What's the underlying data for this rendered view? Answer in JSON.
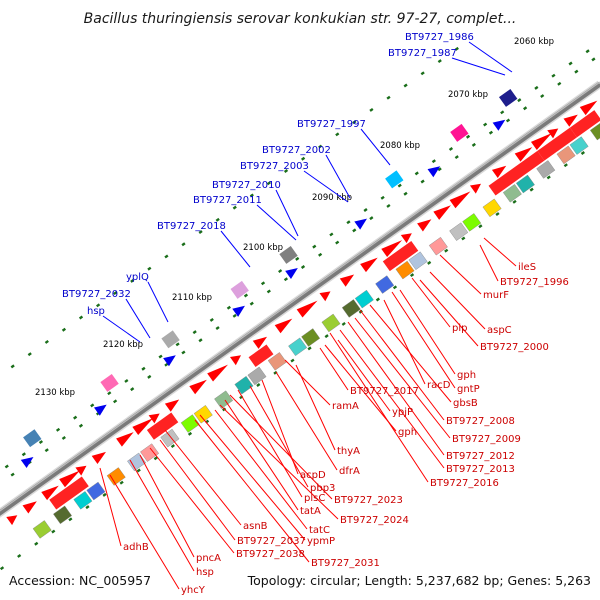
{
  "title": "Bacillus thuringiensis serovar konkukian str. 97-27, complet...",
  "accession": "Accession: NC_005957",
  "topology": "Topology: circular; Length: 5,237,682 bp; Genes: 5,263",
  "colors": {
    "background": "#ffffff",
    "backbone": "#7a7a7a",
    "forward_feature": "#ff0000",
    "reverse_feature": "#ff0000",
    "feature_gene": "#ee0000",
    "tick_dot": "#1a6e1a",
    "label_blue": "#0000cc",
    "label_red": "#cc0000",
    "leader_blue": "#0000ff",
    "leader_red": "#ff0000"
  },
  "ticks": [
    "2060 kbp",
    "2070 kbp",
    "2080 kbp",
    "2090 kbp",
    "2100 kbp",
    "2110 kbp",
    "2120 kbp",
    "2130 kbp"
  ],
  "labels_top": [
    "BT9727_1986",
    "BT9727_1987",
    "BT9727_1997",
    "BT9727_2002",
    "BT9727_2003",
    "BT9727_2010",
    "BT9727_2011",
    "BT9727_2018",
    "yplQ",
    "BT9727_2032",
    "hsp"
  ],
  "labels_bottom": [
    "ileS",
    "BT9727_1996",
    "murF",
    "aspC",
    "pip",
    "BT9727_2000",
    "gph",
    "gntP",
    "racD",
    "gbsB",
    "BT9727_2008",
    "BT9727_2009",
    "BT9727_2012",
    "BT9727_2013",
    "BT9727_2016",
    "ypjP",
    "gph",
    "BT9727_2017",
    "ramA",
    "thyA",
    "dfrA",
    "acpD",
    "pbp3",
    "plsC",
    "BT9727_2023",
    "tatA",
    "BT9727_2024",
    "tatC",
    "ypmP",
    "BT9727_2031",
    "asnB",
    "BT9727_2037",
    "BT9727_2038",
    "pncA",
    "hsp",
    "adhB",
    "yhcY"
  ]
}
